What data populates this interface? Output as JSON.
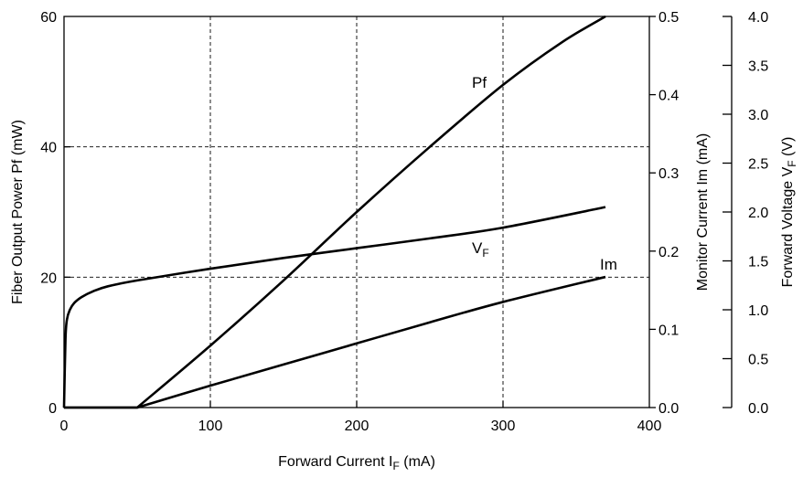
{
  "chart_data": {
    "type": "line",
    "grid": "dashed at x = 100, 200, 300 and Pf = 20, 40",
    "xaxis": {
      "label_main": "Forward Current",
      "label_sym": "I",
      "label_sub": "F",
      "label_unit": " (mA)",
      "lim": [
        0,
        400
      ],
      "ticks": [
        0,
        100,
        200,
        300,
        400
      ],
      "tick_labels": [
        "0",
        "100",
        "200",
        "300",
        "400"
      ]
    },
    "yaxis_left": {
      "label": "Fiber Output Power Pf (mW)",
      "lim": [
        0,
        60
      ],
      "ticks": [
        0,
        20,
        40,
        60
      ],
      "tick_labels": [
        "0",
        "20",
        "40",
        "60"
      ]
    },
    "yaxis_right1": {
      "label": "Monitor Current  Im (mA)",
      "lim": [
        0,
        0.5
      ],
      "ticks": [
        0,
        0.1,
        0.2,
        0.3,
        0.4,
        0.5
      ],
      "tick_labels": [
        "0.0",
        "0.1",
        "0.2",
        "0.3",
        "0.4",
        "0.5"
      ]
    },
    "yaxis_right2": {
      "label_main": "Forward Voltage  V",
      "label_sub": "F",
      "label_unit": " (V)",
      "lim": [
        0,
        4
      ],
      "ticks": [
        0,
        0.5,
        1,
        1.5,
        2,
        2.5,
        3,
        3.5,
        4
      ],
      "tick_labels": [
        "0.0",
        "0.5",
        "1.0",
        "1.5",
        "2.0",
        "2.5",
        "3.0",
        "3.5",
        "4.0"
      ]
    },
    "series": [
      {
        "name": "Pf",
        "axis": "left",
        "label": "Pf",
        "x": [
          0,
          50,
          100,
          150,
          200,
          250,
          300,
          340,
          370
        ],
        "y": [
          0,
          0,
          9.5,
          19.5,
          30,
          40,
          49.5,
          56,
          60
        ]
      },
      {
        "name": "VF",
        "axis": "right2",
        "label_main": "V",
        "label_sub": "F",
        "x": [
          0,
          1,
          2,
          4,
          7,
          12,
          20,
          30,
          50,
          100,
          150,
          200,
          250,
          300,
          370
        ],
        "y": [
          0,
          0.7,
          0.9,
          1.0,
          1.07,
          1.13,
          1.19,
          1.24,
          1.3,
          1.42,
          1.53,
          1.63,
          1.73,
          1.84,
          2.05
        ]
      },
      {
        "name": "Im",
        "axis": "right1",
        "label": "Im",
        "x": [
          0,
          50,
          100,
          150,
          200,
          250,
          300,
          370
        ],
        "y": [
          0,
          0,
          0.028,
          0.055,
          0.082,
          0.109,
          0.135,
          0.167
        ]
      }
    ]
  }
}
